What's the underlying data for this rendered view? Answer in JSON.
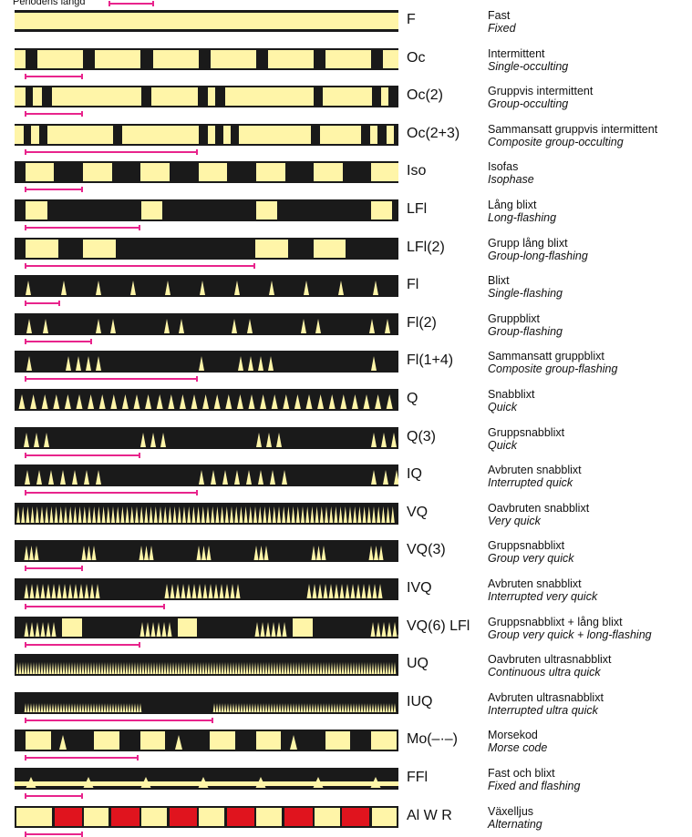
{
  "header": {
    "period_label": "Periodens längd"
  },
  "colors": {
    "light": "#fff5a8",
    "dark": "#1a1a1a",
    "red": "#e0141e",
    "period_marker": "#e8248c",
    "border": "#1a1a1a"
  },
  "rows": [
    {
      "abbr": "F",
      "sv": "Fast",
      "en": "Fixed"
    },
    {
      "abbr": "Oc",
      "sv": "Intermittent",
      "en": "Single-occulting"
    },
    {
      "abbr": "Oc(2)",
      "sv": "Gruppvis intermittent",
      "en": "Group-occulting"
    },
    {
      "abbr": "Oc(2+3)",
      "sv": "Sammansatt gruppvis intermittent",
      "en": "Composite group-occulting"
    },
    {
      "abbr": "Iso",
      "sv": "Isofas",
      "en": "Isophase"
    },
    {
      "abbr": "LFl",
      "sv": "Lång blixt",
      "en": "Long-flashing"
    },
    {
      "abbr": "LFl(2)",
      "sv": "Grupp lång blixt",
      "en": "Group-long-flashing"
    },
    {
      "abbr": "Fl",
      "sv": "Blixt",
      "en": "Single-flashing"
    },
    {
      "abbr": "Fl(2)",
      "sv": "Gruppblixt",
      "en": "Group-flashing"
    },
    {
      "abbr": "Fl(1+4)",
      "sv": "Sammansatt gruppblixt",
      "en": "Composite group-flashing"
    },
    {
      "abbr": "Q",
      "sv": "Snabblixt",
      "en": "Quick"
    },
    {
      "abbr": "Q(3)",
      "sv": "Gruppsnabblixt",
      "en": "Quick"
    },
    {
      "abbr": "IQ",
      "sv": "Avbruten snabblixt",
      "en": "Interrupted quick"
    },
    {
      "abbr": "VQ",
      "sv": "Oavbruten snabblixt",
      "en": "Very quick"
    },
    {
      "abbr": "VQ(3)",
      "sv": "Gruppsnabblixt",
      "en": "Group very quick"
    },
    {
      "abbr": "IVQ",
      "sv": "Avbruten snabblixt",
      "en": "Interrupted very quick"
    },
    {
      "abbr": "VQ(6) LFl",
      "sv": "Gruppsnabblixt + lång blixt",
      "en": "Group very quick + long-flashing"
    },
    {
      "abbr": "UQ",
      "sv": "Oavbruten ultrasnabblixt",
      "en": "Continuous ultra quick"
    },
    {
      "abbr": "IUQ",
      "sv": "Avbruten ultrasnabblixt",
      "en": "Interrupted ultra quick"
    },
    {
      "abbr": "Mo(–·–)",
      "sv": "Morsekod",
      "en": "Morse code"
    },
    {
      "abbr": "FFl",
      "sv": "Fast och blixt",
      "en": "Fixed and flashing"
    },
    {
      "abbr": "Al W R",
      "sv": "Växelljus",
      "en": "Alternating"
    }
  ]
}
